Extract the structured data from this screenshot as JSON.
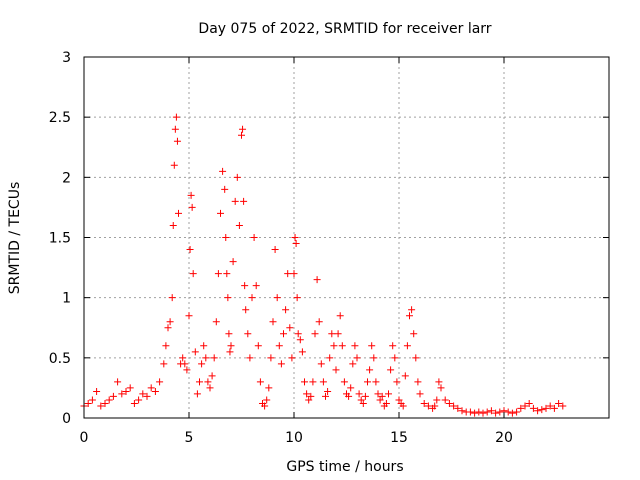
{
  "chart_data": {
    "type": "scatter",
    "title": "Day 075 of 2022, SRMTID for receiver larr",
    "xlabel": "GPS time / hours",
    "ylabel": "SRMTID / TECUs",
    "xlim": [
      0,
      25
    ],
    "ylim": [
      0,
      3
    ],
    "x_ticks": [
      0,
      5,
      10,
      15,
      20
    ],
    "x_tick_labels": [
      "0",
      "5",
      "10",
      "15",
      "20"
    ],
    "y_ticks": [
      0,
      0.5,
      1,
      1.5,
      2,
      2.5,
      3
    ],
    "y_tick_labels": [
      "0",
      "0.5",
      "1",
      "1.5",
      "2",
      "2.5",
      "3"
    ],
    "grid": true,
    "marker": "+",
    "color": "#ff0000",
    "series": [
      {
        "name": "SRMTID",
        "x": [
          0.0,
          0.2,
          0.4,
          0.6,
          0.8,
          1.0,
          1.2,
          1.4,
          1.6,
          1.8,
          2.0,
          2.2,
          2.4,
          2.6,
          2.8,
          3.0,
          3.2,
          3.4,
          3.6,
          3.8,
          3.9,
          4.0,
          4.1,
          4.2,
          4.25,
          4.3,
          4.35,
          4.4,
          4.45,
          4.5,
          4.6,
          4.7,
          4.8,
          4.9,
          5.0,
          5.05,
          5.1,
          5.15,
          5.2,
          5.3,
          5.4,
          5.5,
          5.6,
          5.7,
          5.8,
          5.9,
          6.0,
          6.1,
          6.2,
          6.3,
          6.4,
          6.5,
          6.6,
          6.7,
          6.75,
          6.8,
          6.85,
          6.9,
          6.95,
          7.0,
          7.1,
          7.2,
          7.3,
          7.4,
          7.5,
          7.55,
          7.6,
          7.65,
          7.7,
          7.8,
          7.9,
          8.0,
          8.1,
          8.2,
          8.3,
          8.4,
          8.5,
          8.6,
          8.7,
          8.8,
          8.9,
          9.0,
          9.1,
          9.2,
          9.3,
          9.4,
          9.5,
          9.6,
          9.7,
          9.8,
          9.9,
          10.0,
          10.05,
          10.1,
          10.15,
          10.2,
          10.3,
          10.4,
          10.5,
          10.6,
          10.7,
          10.8,
          10.9,
          11.0,
          11.1,
          11.2,
          11.3,
          11.4,
          11.5,
          11.6,
          11.7,
          11.8,
          11.9,
          12.0,
          12.1,
          12.2,
          12.3,
          12.4,
          12.5,
          12.6,
          12.7,
          12.8,
          12.9,
          13.0,
          13.1,
          13.2,
          13.3,
          13.4,
          13.5,
          13.6,
          13.7,
          13.8,
          13.9,
          14.0,
          14.1,
          14.2,
          14.3,
          14.4,
          14.5,
          14.6,
          14.7,
          14.8,
          14.9,
          15.0,
          15.1,
          15.2,
          15.3,
          15.4,
          15.5,
          15.6,
          15.7,
          15.8,
          15.9,
          16.0,
          16.2,
          16.4,
          16.6,
          16.7,
          16.8,
          16.9,
          17.0,
          17.2,
          17.4,
          17.6,
          17.8,
          18.0,
          18.2,
          18.4,
          18.6,
          18.8,
          19.0,
          19.2,
          19.4,
          19.6,
          19.8,
          20.0,
          20.2,
          20.4,
          20.6,
          20.8,
          21.0,
          21.2,
          21.4,
          21.6,
          21.8,
          22.0,
          22.2,
          22.4,
          22.6,
          22.8
        ],
        "y": [
          0.1,
          0.12,
          0.15,
          0.22,
          0.1,
          0.12,
          0.15,
          0.18,
          0.3,
          0.2,
          0.22,
          0.25,
          0.12,
          0.15,
          0.2,
          0.18,
          0.25,
          0.22,
          0.3,
          0.45,
          0.6,
          0.75,
          0.8,
          1.0,
          1.6,
          2.1,
          2.4,
          2.5,
          2.3,
          1.7,
          0.45,
          0.5,
          0.45,
          0.4,
          0.85,
          1.4,
          1.85,
          1.75,
          1.2,
          0.55,
          0.2,
          0.3,
          0.45,
          0.6,
          0.5,
          0.3,
          0.25,
          0.35,
          0.5,
          0.8,
          1.2,
          1.7,
          2.05,
          1.9,
          1.5,
          1.2,
          1.0,
          0.7,
          0.55,
          0.6,
          1.3,
          1.8,
          2.0,
          1.6,
          2.35,
          2.4,
          1.8,
          1.1,
          0.9,
          0.7,
          0.5,
          1.0,
          1.5,
          1.1,
          0.6,
          0.3,
          0.12,
          0.1,
          0.15,
          0.25,
          0.5,
          0.8,
          1.4,
          1.0,
          0.6,
          0.45,
          0.7,
          0.9,
          1.2,
          0.75,
          0.5,
          1.2,
          1.5,
          1.45,
          1.0,
          0.7,
          0.65,
          0.55,
          0.3,
          0.2,
          0.15,
          0.18,
          0.3,
          0.7,
          1.15,
          0.8,
          0.45,
          0.3,
          0.18,
          0.22,
          0.5,
          0.7,
          0.6,
          0.4,
          0.7,
          0.85,
          0.6,
          0.3,
          0.2,
          0.18,
          0.25,
          0.45,
          0.6,
          0.5,
          0.2,
          0.15,
          0.12,
          0.18,
          0.3,
          0.4,
          0.6,
          0.5,
          0.3,
          0.2,
          0.15,
          0.18,
          0.1,
          0.12,
          0.2,
          0.4,
          0.6,
          0.5,
          0.3,
          0.15,
          0.12,
          0.1,
          0.35,
          0.6,
          0.85,
          0.9,
          0.7,
          0.5,
          0.3,
          0.2,
          0.12,
          0.1,
          0.08,
          0.1,
          0.15,
          0.3,
          0.25,
          0.15,
          0.12,
          0.1,
          0.08,
          0.06,
          0.05,
          0.05,
          0.04,
          0.05,
          0.04,
          0.05,
          0.06,
          0.04,
          0.05,
          0.06,
          0.05,
          0.04,
          0.05,
          0.08,
          0.1,
          0.12,
          0.08,
          0.06,
          0.07,
          0.08,
          0.1,
          0.08,
          0.12,
          0.1
        ]
      }
    ]
  }
}
